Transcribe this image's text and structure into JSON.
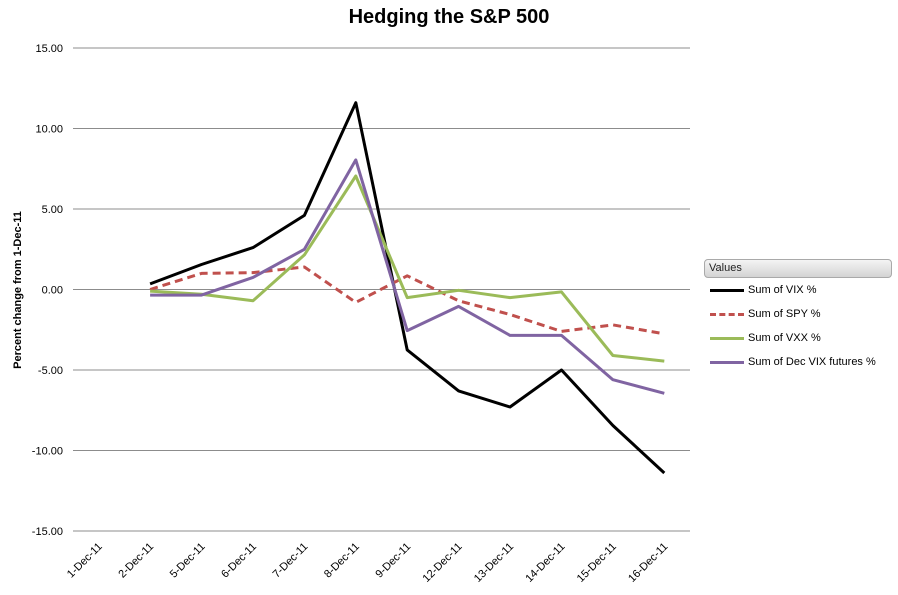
{
  "chart_data": {
    "type": "line",
    "title": "Hedging the S&P 500",
    "xlabel": "",
    "ylabel": "Percent change from 1-Dec-11",
    "ylim": [
      -15,
      15
    ],
    "ytick_step": 5,
    "ytick_labels": [
      "15.00",
      "10.00",
      "5.00",
      "0.00",
      "-5.00",
      "-10.00",
      "-15.00"
    ],
    "categories": [
      "1-Dec-11",
      "2-Dec-11",
      "5-Dec-11",
      "6-Dec-11",
      "7-Dec-11",
      "8-Dec-11",
      "9-Dec-11",
      "12-Dec-11",
      "13-Dec-11",
      "14-Dec-11",
      "15-Dec-11",
      "16-Dec-11"
    ],
    "grid": true,
    "legend_title": "Values",
    "legend_position": "right",
    "series": [
      {
        "name": "Sum of VIX %",
        "color": "#000000",
        "dash": "solid",
        "values": [
          null,
          0.35,
          1.55,
          2.6,
          4.6,
          11.6,
          -3.75,
          -6.3,
          -7.3,
          -5.0,
          -8.45,
          -11.4
        ]
      },
      {
        "name": "Sum of SPY %",
        "color": "#c0504d",
        "dash": "dashed",
        "values": [
          null,
          0.0,
          1.0,
          1.05,
          1.4,
          -0.8,
          0.85,
          -0.7,
          -1.55,
          -2.6,
          -2.2,
          -2.75
        ]
      },
      {
        "name": "Sum of VXX %",
        "color": "#9bbb59",
        "dash": "solid",
        "values": [
          null,
          -0.1,
          -0.3,
          -0.7,
          2.15,
          7.05,
          -0.5,
          -0.05,
          -0.5,
          -0.15,
          -4.1,
          -4.45
        ]
      },
      {
        "name": "Sum of Dec VIX futures %",
        "color": "#8064a2",
        "dash": "solid",
        "values": [
          null,
          -0.35,
          -0.35,
          0.75,
          2.5,
          8.05,
          -2.55,
          -1.05,
          -2.85,
          -2.85,
          -5.6,
          -6.45
        ]
      }
    ]
  }
}
